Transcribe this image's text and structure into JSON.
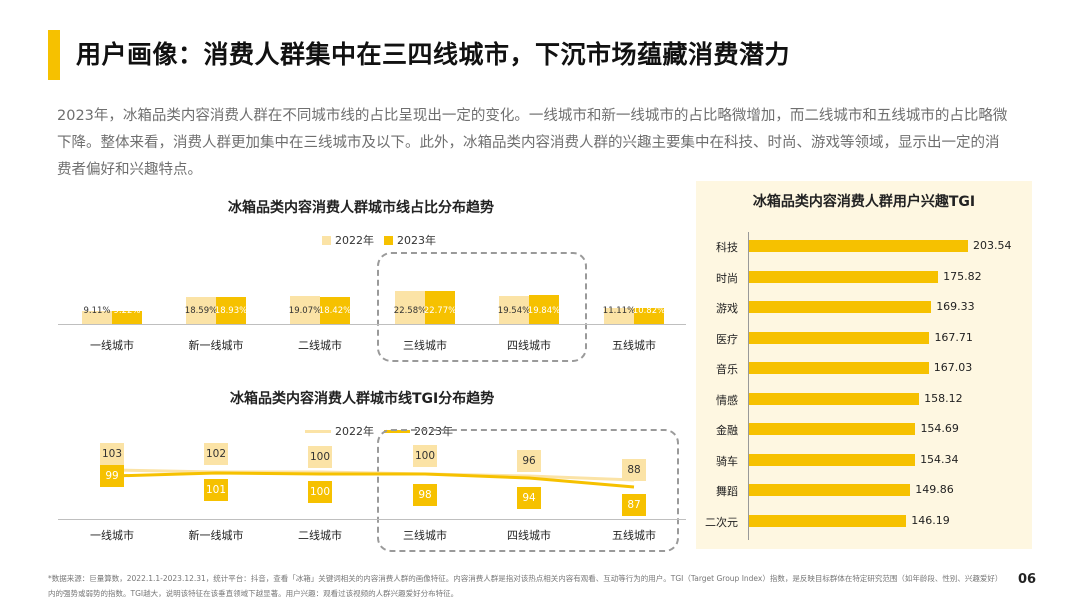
{
  "header": {
    "title": "用户画像：消费人群集中在三四线城市，下沉市场蕴藏消费潜力"
  },
  "intro": "2023年，冰箱品类内容消费人群在不同城市线的占比呈现出一定的变化。一线城市和新一线城市的占比略微增加，而二线城市和五线城市的占比略微下降。整体来看，消费人群更加集中在三线城市及以下。此外，冰箱品类内容消费人群的兴趣主要集中在科技、时尚、游戏等领域，显示出一定的消费者偏好和兴趣特点。",
  "colors": {
    "accent": "#f6c100",
    "accent_light": "#fbe3a6",
    "panel_bg": "#fef7e1",
    "label_on_bar": "#ffffff",
    "label_off_bar": "#333333"
  },
  "chart_data": [
    {
      "type": "bar",
      "title": "冰箱品类内容消费人群城市线占比分布趋势",
      "categories": [
        "一线城市",
        "新一线城市",
        "二线城市",
        "三线城市",
        "四线城市",
        "五线城市"
      ],
      "series": [
        {
          "name": "2022年",
          "values": [
            9.11,
            18.59,
            19.07,
            22.58,
            19.54,
            11.11
          ],
          "labels": [
            "9.11%",
            "18.59%",
            "19.07%",
            "22.58%",
            "19.54%",
            "11.11%"
          ]
        },
        {
          "name": "2023年",
          "values": [
            9.22,
            18.93,
            18.42,
            22.77,
            19.84,
            10.82
          ],
          "labels": [
            "9.22%",
            "18.93%",
            "18.42%",
            "22.77%",
            "19.84%",
            "10.82%"
          ]
        }
      ],
      "ylim": [
        0,
        22.77
      ],
      "legend": "top-center"
    },
    {
      "type": "line",
      "title": "冰箱品类内容消费人群城市线TGI分布趋势",
      "categories": [
        "一线城市",
        "新一线城市",
        "二线城市",
        "三线城市",
        "四线城市",
        "五线城市"
      ],
      "series": [
        {
          "name": "2022年",
          "values": [
            103,
            102,
            100,
            100,
            96,
            88
          ],
          "labels": [
            "103",
            "102",
            "100",
            "100",
            "96",
            "88"
          ]
        },
        {
          "name": "2023年",
          "values": [
            99,
            101,
            100,
            98,
            94,
            87
          ],
          "labels": [
            "99",
            "101",
            "100",
            "98",
            "94",
            "87"
          ]
        }
      ],
      "legend": "top-center"
    },
    {
      "type": "bar",
      "orientation": "horizontal",
      "title": "冰箱品类内容消费人群用户兴趣TGI",
      "categories": [
        "科技",
        "时尚",
        "游戏",
        "医疗",
        "音乐",
        "情感",
        "金融",
        "骑车",
        "舞蹈",
        "二次元"
      ],
      "values": [
        203.54,
        175.82,
        169.33,
        167.71,
        167.03,
        158.12,
        154.69,
        154.34,
        149.86,
        146.19
      ],
      "labels": [
        "203.54",
        "175.82",
        "169.33",
        "167.71",
        "167.03",
        "158.12",
        "154.69",
        "154.34",
        "149.86",
        "146.19"
      ]
    }
  ],
  "footnote": "*数据来源：巨量算数，2022.1.1-2023.12.31，统计平台：抖音，查看「冰箱」关键词相关的内容消费人群的画像特征。内容消费人群是指对该热点相关内容有观看、互动等行为的用户。TGI（Target Group Index）指数，是反映目标群体在特定研究范围（如年龄段、性别、兴趣爱好）内的强势或弱势的指数。TGI越大，说明该特征在该垂直领域下越显著。用户兴趣：观看过该视频的人群兴趣爱好分布特征。",
  "page_number": "06"
}
